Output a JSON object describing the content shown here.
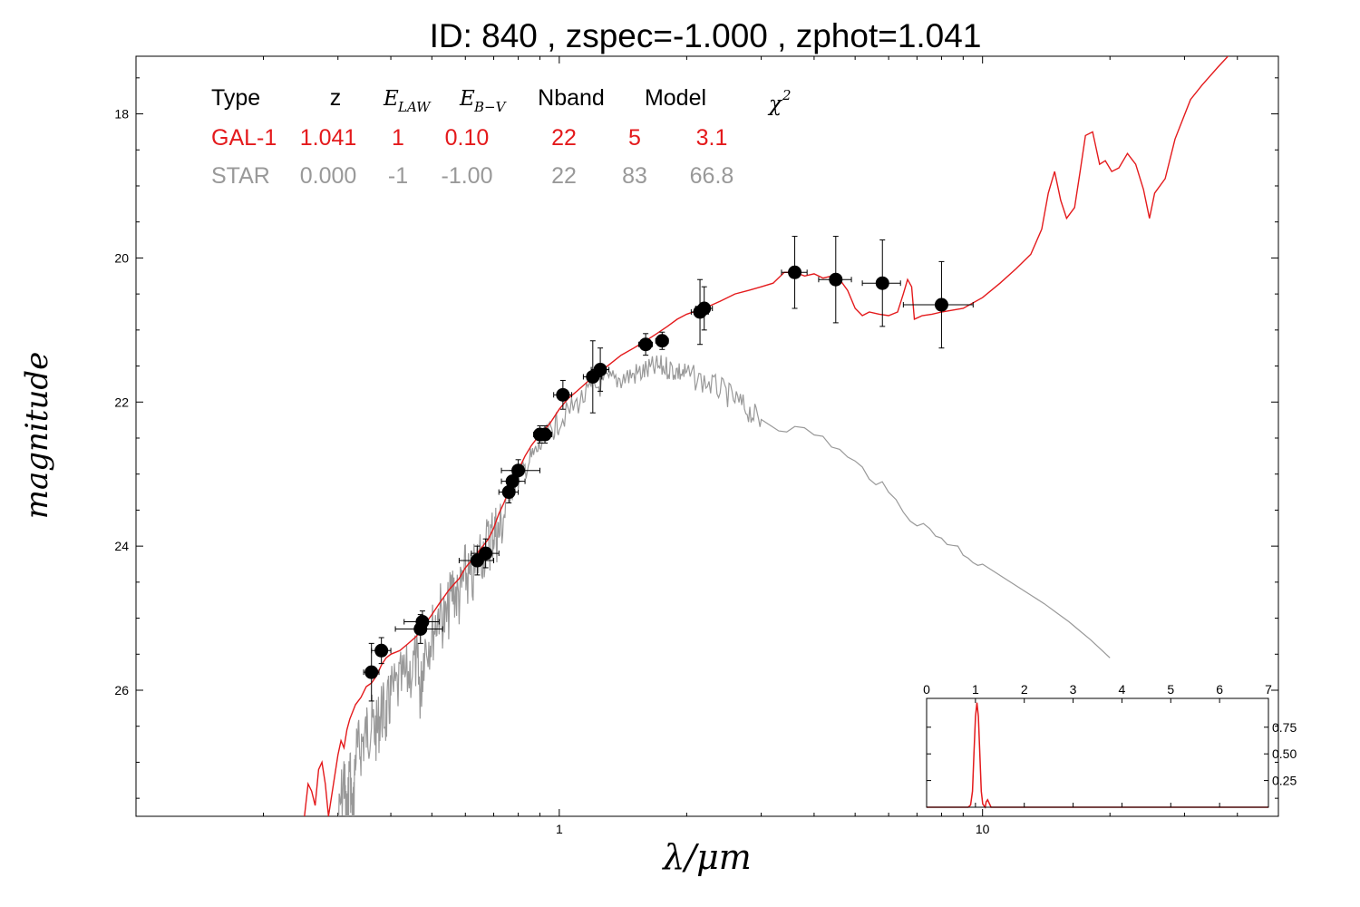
{
  "title": "ID:  840   , zspec=-1.000 , zphot=1.041",
  "chart_data": [
    {
      "type": "scatter",
      "panel": "main",
      "xlabel": "λ/μm",
      "ylabel": "magnitude",
      "x_scale": "log",
      "xlim": [
        0.1,
        50
      ],
      "ylim": [
        27.75,
        17.2
      ],
      "y_inverted": true,
      "x_tick_labels": [
        "1",
        "10"
      ],
      "y_tick_labels": [
        "18",
        "20",
        "22",
        "24",
        "26"
      ],
      "y_ticks": [
        18,
        20,
        22,
        24,
        26
      ],
      "legend_table": {
        "headers": [
          "Type",
          "z",
          "E_LAW",
          "E_B-V",
          "Nband",
          "Model",
          "χ²"
        ],
        "rows": [
          {
            "cells": [
              "GAL-1",
              "1.041",
              "1",
              "0.10",
              "22",
              "5",
              "3.1"
            ],
            "color": "#e41a1c"
          },
          {
            "cells": [
              "STAR",
              "0.000",
              "-1",
              "-1.00",
              "22",
              "83",
              "66.8"
            ],
            "color": "#999999"
          }
        ]
      },
      "photometry": {
        "name": "observed",
        "color": "#000000",
        "points": [
          {
            "x": 0.36,
            "y": 25.75,
            "xerr": [
              0.345,
              0.375
            ],
            "yerr": 0.4
          },
          {
            "x": 0.38,
            "y": 25.45,
            "xerr": [
              0.36,
              0.4
            ],
            "yerr": 0.18
          },
          {
            "x": 0.47,
            "y": 25.15,
            "xerr": [
              0.41,
              0.53
            ],
            "yerr": 0.2
          },
          {
            "x": 0.475,
            "y": 25.05,
            "xerr": [
              0.43,
              0.52
            ],
            "yerr": 0.15
          },
          {
            "x": 0.64,
            "y": 24.2,
            "xerr": [
              0.58,
              0.7
            ],
            "yerr": 0.2
          },
          {
            "x": 0.67,
            "y": 24.1,
            "xerr": [
              0.62,
              0.72
            ],
            "yerr": 0.2
          },
          {
            "x": 0.76,
            "y": 23.25,
            "xerr": [
              0.72,
              0.8
            ],
            "yerr": 0.15
          },
          {
            "x": 0.775,
            "y": 23.1,
            "xerr": [
              0.73,
              0.83
            ],
            "yerr": 0.15
          },
          {
            "x": 0.8,
            "y": 22.95,
            "xerr": [
              0.73,
              0.9
            ],
            "yerr": 0.15
          },
          {
            "x": 0.9,
            "y": 22.45,
            "xerr": [
              0.87,
              0.93
            ],
            "yerr": 0.12
          },
          {
            "x": 0.925,
            "y": 22.45,
            "xerr": [
              0.89,
              0.96
            ],
            "yerr": 0.12
          },
          {
            "x": 1.02,
            "y": 21.9,
            "xerr": [
              0.97,
              1.07
            ],
            "yerr": 0.2
          },
          {
            "x": 1.2,
            "y": 21.65,
            "xerr": [
              1.14,
              1.26
            ],
            "yerr": 0.5
          },
          {
            "x": 1.25,
            "y": 21.55,
            "xerr": [
              1.19,
              1.31
            ],
            "yerr": 0.3
          },
          {
            "x": 1.6,
            "y": 21.2,
            "xerr": [
              1.54,
              1.66
            ],
            "yerr": 0.15
          },
          {
            "x": 1.75,
            "y": 21.15,
            "xerr": [
              1.69,
              1.81
            ],
            "yerr": 0.12
          },
          {
            "x": 2.15,
            "y": 20.75,
            "xerr": [
              2.05,
              2.25
            ],
            "yerr": 0.45
          },
          {
            "x": 2.2,
            "y": 20.7,
            "xerr": [
              2.1,
              2.3
            ],
            "yerr": 0.3
          },
          {
            "x": 3.6,
            "y": 20.2,
            "xerr": [
              3.35,
              3.85
            ],
            "yerr": 0.5
          },
          {
            "x": 4.5,
            "y": 20.3,
            "xerr": [
              4.1,
              4.9
            ],
            "yerr": 0.6
          },
          {
            "x": 5.8,
            "y": 20.35,
            "xerr": [
              5.2,
              6.4
            ],
            "yerr": 0.6
          },
          {
            "x": 8.0,
            "y": 20.65,
            "xerr": [
              6.5,
              9.5
            ],
            "yerr": 0.6
          }
        ]
      },
      "series": [
        {
          "name": "GAL-1",
          "type": "line",
          "color": "#e41a1c",
          "points": [
            [
              0.25,
              27.75
            ],
            [
              0.255,
              27.3
            ],
            [
              0.26,
              27.4
            ],
            [
              0.265,
              27.6
            ],
            [
              0.27,
              27.1
            ],
            [
              0.275,
              27.0
            ],
            [
              0.28,
              27.3
            ],
            [
              0.285,
              27.75
            ],
            [
              0.3,
              26.9
            ],
            [
              0.305,
              26.7
            ],
            [
              0.31,
              26.8
            ],
            [
              0.315,
              26.55
            ],
            [
              0.32,
              26.4
            ],
            [
              0.33,
              26.2
            ],
            [
              0.34,
              26.1
            ],
            [
              0.35,
              25.95
            ],
            [
              0.36,
              25.9
            ],
            [
              0.37,
              25.8
            ],
            [
              0.38,
              25.65
            ],
            [
              0.39,
              25.55
            ],
            [
              0.4,
              25.5
            ],
            [
              0.42,
              25.45
            ],
            [
              0.44,
              25.35
            ],
            [
              0.46,
              25.25
            ],
            [
              0.48,
              25.1
            ],
            [
              0.5,
              24.95
            ],
            [
              0.52,
              24.8
            ],
            [
              0.55,
              24.6
            ],
            [
              0.58,
              24.45
            ],
            [
              0.6,
              24.3
            ],
            [
              0.63,
              24.15
            ],
            [
              0.66,
              24.0
            ],
            [
              0.68,
              23.9
            ],
            [
              0.7,
              23.75
            ],
            [
              0.72,
              23.55
            ],
            [
              0.74,
              23.4
            ],
            [
              0.77,
              23.15
            ],
            [
              0.8,
              22.95
            ],
            [
              0.83,
              22.75
            ],
            [
              0.86,
              22.6
            ],
            [
              0.9,
              22.45
            ],
            [
              0.95,
              22.3
            ],
            [
              1.0,
              22.1
            ],
            [
              1.05,
              21.95
            ],
            [
              1.1,
              21.85
            ],
            [
              1.15,
              21.75
            ],
            [
              1.2,
              21.65
            ],
            [
              1.3,
              21.5
            ],
            [
              1.4,
              21.35
            ],
            [
              1.5,
              21.25
            ],
            [
              1.6,
              21.15
            ],
            [
              1.7,
              21.05
            ],
            [
              1.8,
              20.95
            ],
            [
              1.9,
              20.85
            ],
            [
              2.0,
              20.78
            ],
            [
              2.2,
              20.7
            ],
            [
              2.4,
              20.6
            ],
            [
              2.6,
              20.5
            ],
            [
              2.8,
              20.45
            ],
            [
              3.0,
              20.4
            ],
            [
              3.2,
              20.35
            ],
            [
              3.4,
              20.2
            ],
            [
              3.6,
              20.2
            ],
            [
              3.8,
              20.25
            ],
            [
              4.0,
              20.22
            ],
            [
              4.2,
              20.28
            ],
            [
              4.4,
              20.25
            ],
            [
              4.6,
              20.3
            ],
            [
              4.8,
              20.45
            ],
            [
              5.0,
              20.7
            ],
            [
              5.2,
              20.8
            ],
            [
              5.4,
              20.75
            ],
            [
              5.7,
              20.78
            ],
            [
              6.0,
              20.8
            ],
            [
              6.3,
              20.75
            ],
            [
              6.5,
              20.5
            ],
            [
              6.65,
              20.3
            ],
            [
              6.8,
              20.4
            ],
            [
              6.9,
              20.85
            ],
            [
              7.2,
              20.8
            ],
            [
              7.6,
              20.78
            ],
            [
              8.0,
              20.75
            ],
            [
              9.0,
              20.7
            ],
            [
              10.0,
              20.55
            ],
            [
              11.0,
              20.35
            ],
            [
              12.0,
              20.15
            ],
            [
              13.0,
              19.95
            ],
            [
              13.8,
              19.6
            ],
            [
              14.3,
              19.1
            ],
            [
              14.8,
              18.8
            ],
            [
              15.3,
              19.2
            ],
            [
              15.8,
              19.45
            ],
            [
              16.5,
              19.3
            ],
            [
              17.0,
              18.8
            ],
            [
              17.5,
              18.3
            ],
            [
              18.2,
              18.25
            ],
            [
              18.9,
              18.7
            ],
            [
              19.5,
              18.65
            ],
            [
              20.2,
              18.8
            ],
            [
              21.0,
              18.75
            ],
            [
              22.0,
              18.55
            ],
            [
              23.0,
              18.7
            ],
            [
              24.0,
              19.05
            ],
            [
              24.8,
              19.45
            ],
            [
              25.5,
              19.1
            ],
            [
              27.0,
              18.9
            ],
            [
              28.5,
              18.35
            ],
            [
              31.0,
              17.8
            ],
            [
              33.0,
              17.6
            ],
            [
              36.0,
              17.35
            ],
            [
              38.0,
              17.2
            ],
            [
              40.0,
              17.1
            ]
          ]
        },
        {
          "name": "STAR",
          "type": "line",
          "color": "#999999",
          "points": [
            [
              0.3,
              27.75
            ],
            [
              0.31,
              27.0
            ],
            [
              0.315,
              27.75
            ],
            [
              0.32,
              26.8
            ],
            [
              0.325,
              27.75
            ],
            [
              0.33,
              26.7
            ],
            [
              0.34,
              26.6
            ],
            [
              0.35,
              26.4
            ],
            [
              0.36,
              26.3
            ],
            [
              0.37,
              26.4
            ],
            [
              0.38,
              26.1
            ],
            [
              0.39,
              26.2
            ],
            [
              0.4,
              25.9
            ],
            [
              0.42,
              25.75
            ],
            [
              0.44,
              25.6
            ],
            [
              0.46,
              25.4
            ],
            [
              0.47,
              25.9
            ],
            [
              0.48,
              25.2
            ],
            [
              0.5,
              25.05
            ],
            [
              0.52,
              24.7
            ],
            [
              0.54,
              24.9
            ],
            [
              0.56,
              24.4
            ],
            [
              0.58,
              24.55
            ],
            [
              0.6,
              24.2
            ],
            [
              0.62,
              24.35
            ],
            [
              0.65,
              23.9
            ],
            [
              0.68,
              23.8
            ],
            [
              0.7,
              23.6
            ],
            [
              0.72,
              23.65
            ],
            [
              0.75,
              23.25
            ],
            [
              0.8,
              23.0
            ],
            [
              0.85,
              22.75
            ],
            [
              0.9,
              22.55
            ],
            [
              0.95,
              22.35
            ],
            [
              1.0,
              22.2
            ],
            [
              1.1,
              21.95
            ],
            [
              1.2,
              21.75
            ],
            [
              1.3,
              21.65
            ],
            [
              1.4,
              21.6
            ],
            [
              1.5,
              21.55
            ],
            [
              1.6,
              21.5
            ],
            [
              1.7,
              21.45
            ],
            [
              1.8,
              21.45
            ],
            [
              1.9,
              21.5
            ],
            [
              2.0,
              21.55
            ],
            [
              2.2,
              21.65
            ],
            [
              2.4,
              21.75
            ],
            [
              2.6,
              21.9
            ],
            [
              2.8,
              22.05
            ],
            [
              3.0,
              22.2
            ],
            [
              3.3,
              22.3
            ],
            [
              3.6,
              22.35
            ],
            [
              4.0,
              22.4
            ],
            [
              4.4,
              22.55
            ],
            [
              4.8,
              22.75
            ],
            [
              5.2,
              22.9
            ],
            [
              5.6,
              23.05
            ],
            [
              6.0,
              23.25
            ],
            [
              6.5,
              23.45
            ],
            [
              7.0,
              23.65
            ],
            [
              7.5,
              23.75
            ],
            [
              8.0,
              23.85
            ],
            [
              8.5,
              23.95
            ],
            [
              9.0,
              24.05
            ],
            [
              9.5,
              24.15
            ],
            [
              10.0,
              24.25
            ],
            [
              12.0,
              24.55
            ],
            [
              14.0,
              24.8
            ],
            [
              16.0,
              25.05
            ],
            [
              18.0,
              25.3
            ],
            [
              20.0,
              25.55
            ]
          ],
          "noise_region": [
            0.3,
            3.0
          ]
        }
      ]
    },
    {
      "type": "line",
      "panel": "inset",
      "xlim": [
        0,
        7
      ],
      "x_tick_labels": [
        "0",
        "1",
        "2",
        "3",
        "4",
        "5",
        "6",
        "7"
      ],
      "x_ticks": [
        0,
        1,
        2,
        3,
        4,
        5,
        6,
        7
      ],
      "y_tick_labels": [
        "0.25",
        "0.50",
        "0.75"
      ],
      "y_ticks": [
        0.25,
        0.5,
        0.75
      ],
      "ylim": [
        0,
        1.02
      ],
      "series": [
        {
          "name": "PDZ",
          "color": "#e41a1c",
          "points": [
            [
              0.0,
              0.0
            ],
            [
              0.85,
              0.0
            ],
            [
              0.9,
              0.02
            ],
            [
              0.94,
              0.15
            ],
            [
              0.97,
              0.5
            ],
            [
              1.0,
              0.85
            ],
            [
              1.03,
              0.98
            ],
            [
              1.06,
              0.85
            ],
            [
              1.09,
              0.5
            ],
            [
              1.12,
              0.15
            ],
            [
              1.15,
              0.03
            ],
            [
              1.18,
              0.01
            ],
            [
              1.2,
              0.0
            ],
            [
              1.22,
              0.05
            ],
            [
              1.25,
              0.07
            ],
            [
              1.28,
              0.04
            ],
            [
              1.32,
              0.0
            ],
            [
              7.0,
              0.0
            ]
          ]
        }
      ]
    }
  ]
}
